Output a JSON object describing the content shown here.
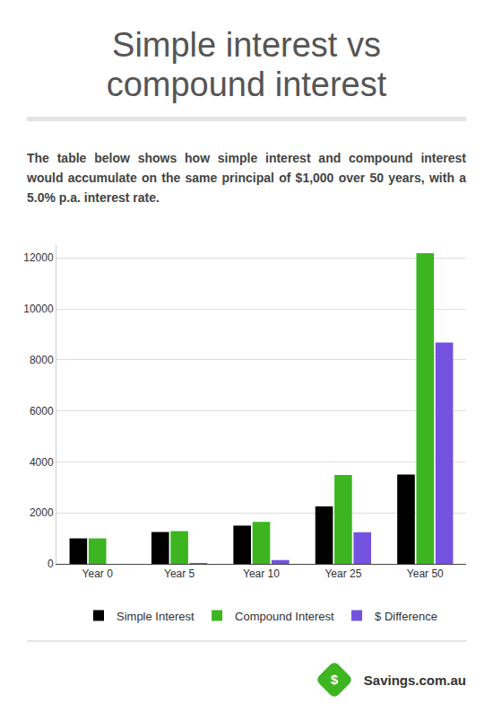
{
  "chart_data": {
    "type": "bar",
    "title": "Simple interest vs compound interest",
    "subtitle": "The table below shows how simple interest and compound interest would accumulate on the same principal of $1,000 over 50 years, with a 5.0% p.a. interest rate.",
    "categories": [
      "Year 0",
      "Year 5",
      "Year 10",
      "Year 25",
      "Year 50"
    ],
    "series": [
      {
        "name": "Simple Interest",
        "color": "#000000",
        "values": [
          1000,
          1250,
          1500,
          2250,
          3500
        ]
      },
      {
        "name": "Compound Interest",
        "color": "#3cb521",
        "values": [
          1000,
          1284,
          1649,
          3490,
          12182
        ]
      },
      {
        "name": "$ Difference",
        "color": "#7352e0",
        "values": [
          0,
          34,
          149,
          1240,
          8682
        ]
      }
    ],
    "ylim": [
      0,
      12500
    ],
    "yticks": [
      0,
      2000,
      4000,
      6000,
      8000,
      10000,
      12000
    ],
    "grid": true,
    "legend": "bottom",
    "annotations": [
      "Savings.com.au"
    ]
  }
}
